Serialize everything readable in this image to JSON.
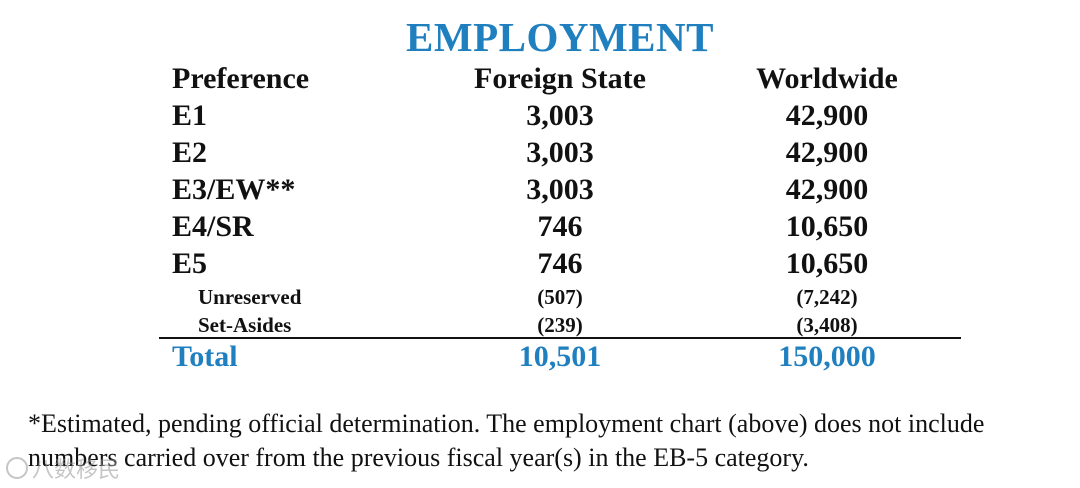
{
  "title": "EMPLOYMENT",
  "headers": {
    "preference": "Preference",
    "foreign_state": "Foreign State",
    "worldwide": "Worldwide"
  },
  "rows": [
    {
      "preference": "E1",
      "foreign_state": "3,003",
      "worldwide": "42,900"
    },
    {
      "preference": "E2",
      "foreign_state": "3,003",
      "worldwide": "42,900"
    },
    {
      "preference": "E3/EW**",
      "foreign_state": "3,003",
      "worldwide": "42,900"
    },
    {
      "preference": "E4/SR",
      "foreign_state": "746",
      "worldwide": "10,650"
    },
    {
      "preference": "E5",
      "foreign_state": "746",
      "worldwide": "10,650"
    }
  ],
  "sub_rows": [
    {
      "preference": "Unreserved",
      "foreign_state": "(507)",
      "worldwide": "(7,242)"
    },
    {
      "preference": "Set-Asides",
      "foreign_state": "(239)",
      "worldwide": "(3,408)"
    }
  ],
  "total": {
    "label": "Total",
    "foreign_state": "10,501",
    "worldwide": "150,000"
  },
  "footnote": {
    "line1": "*Estimated, pending official determination. The employment chart (above) does not include",
    "line2": "numbers carried over from the previous fiscal year(s) in the EB-5 category."
  },
  "watermark": "八数移民",
  "colors": {
    "accent": "#1f7fbf",
    "text": "#111111"
  }
}
